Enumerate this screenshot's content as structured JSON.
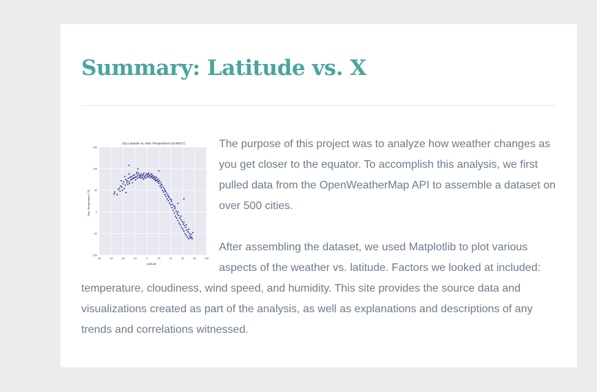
{
  "summary": {
    "title": "Summary: Latitude vs. X",
    "paragraphs": [
      "The purpose of this project was to analyze how weather changes as you get closer to the equator. To accomplish this analysis, we first pulled data from the OpenWeatherMap API to assemble a dataset on over 500 cities.",
      "After assembling the dataset, we used Matplotlib to plot various aspects of the weather vs. latitude. Factors we looked at included: temperature, cloudiness, wind speed, and humidity. This site provides the source data and visualizations created as part of the analysis, as well as explanations and descriptions of any trends and correlations witnessed."
    ]
  },
  "colors": {
    "page_bg": "#ececec",
    "title": "#4aa59d",
    "body_text": "#6b7b8c",
    "plot_bg": "#e8e8f1",
    "point": "#1a1a80"
  },
  "chart_data": {
    "type": "scatter",
    "title": "City Latitude vs. Max Temperature (01/08/17)",
    "xlabel": "Latitude",
    "ylabel": "Max Temperature (°F)",
    "xlim": [
      -80,
      100
    ],
    "ylim": [
      -100,
      150
    ],
    "xticks": [
      "-80",
      "-60",
      "-40",
      "-20",
      "0",
      "20",
      "40",
      "60",
      "80",
      "100"
    ],
    "yticks": [
      "150",
      "100",
      "50",
      "0",
      "-50",
      "-100"
    ],
    "grid": true,
    "series": [
      {
        "x": [
          -55,
          -54,
          -50,
          -48,
          -46,
          -45,
          -44,
          -42,
          -41,
          -40,
          -39,
          -38,
          -36,
          -35,
          -35,
          -34,
          -33,
          -32,
          -31,
          -30,
          -29,
          -28,
          -27,
          -26,
          -25,
          -24,
          -23,
          -22,
          -21,
          -20,
          -19,
          -18,
          -17,
          -16,
          -15,
          -14,
          -13,
          -12,
          -11,
          -10,
          -9,
          -8,
          -7,
          -6,
          -5,
          -4,
          -3,
          -2,
          -1,
          0,
          1,
          2,
          3,
          4,
          5,
          6,
          7,
          8,
          9,
          10,
          11,
          12,
          13,
          14,
          15,
          16,
          17,
          18,
          19,
          20,
          21,
          22,
          23,
          24,
          25,
          26,
          27,
          28,
          29,
          30,
          31,
          32,
          33,
          34,
          35,
          36,
          37,
          38,
          39,
          40,
          41,
          42,
          43,
          44,
          45,
          46,
          47,
          48,
          49,
          50,
          51,
          52,
          53,
          54,
          55,
          56,
          57,
          58,
          59,
          60,
          61,
          62,
          63,
          64,
          65,
          66,
          67,
          68,
          69,
          70,
          71,
          72,
          73,
          74,
          75,
          76,
          77,
          -43,
          -37,
          -30,
          -23,
          -17,
          -11,
          -6,
          2,
          8,
          14,
          19,
          24,
          30,
          36,
          41,
          47,
          52,
          57,
          62,
          66,
          70,
          73,
          -30,
          -15,
          20,
          52,
          62
        ],
        "y": [
          42,
          46,
          40,
          52,
          55,
          48,
          60,
          58,
          50,
          65,
          70,
          54,
          62,
          75,
          45,
          68,
          72,
          64,
          78,
          70,
          66,
          80,
          74,
          82,
          76,
          68,
          84,
          78,
          86,
          80,
          74,
          82,
          88,
          78,
          84,
          90,
          80,
          86,
          82,
          78,
          88,
          84,
          80,
          86,
          90,
          82,
          78,
          84,
          88,
          80,
          86,
          82,
          90,
          84,
          80,
          86,
          82,
          88,
          78,
          84,
          80,
          76,
          82,
          78,
          72,
          80,
          74,
          70,
          76,
          66,
          72,
          60,
          68,
          56,
          64,
          50,
          58,
          46,
          54,
          40,
          48,
          36,
          44,
          30,
          40,
          26,
          34,
          20,
          30,
          16,
          24,
          10,
          18,
          4,
          14,
          -2,
          8,
          -10,
          2,
          -14,
          -4,
          -20,
          -8,
          -26,
          -14,
          -30,
          -18,
          -36,
          -22,
          -40,
          -28,
          -44,
          -32,
          -50,
          -36,
          -54,
          -42,
          -58,
          -46,
          -62,
          -50,
          -56,
          -60,
          -52,
          -58,
          -62,
          -48,
          72,
          82,
          88,
          78,
          92,
          84,
          76,
          88,
          82,
          74,
          70,
          62,
          50,
          36,
          28,
          12,
          0,
          -10,
          -24,
          -30,
          -40,
          -60,
          108,
          100,
          95,
          20,
          30
        ]
      }
    ]
  }
}
